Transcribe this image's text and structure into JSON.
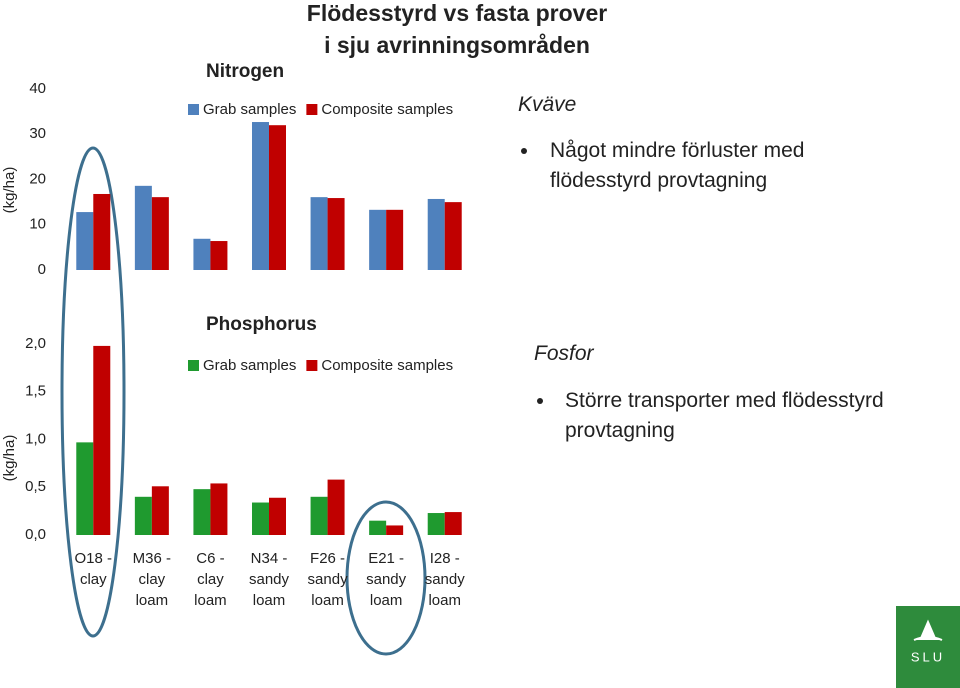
{
  "slide": {
    "title": [
      "Flödesstyrd vs fasta prover",
      "i sju avrinningsområden"
    ],
    "notes": [
      {
        "heading": "Kväve",
        "bullet": "Något mindre förluster med flödesstyrd provtagning"
      },
      {
        "heading": "Fosfor",
        "bullet": "Större transporter med flödesstyrd provtagning"
      }
    ],
    "logo": "SLU"
  },
  "chart_data": [
    {
      "type": "bar",
      "title": "Nitrogen",
      "y_label": "(kg/ha)",
      "categories": [
        null,
        null,
        null,
        null,
        null,
        null,
        null
      ],
      "series": [
        {
          "name": "Grab samples",
          "color": "#4f81bd",
          "values": [
            12.8,
            18.6,
            6.9,
            32.7,
            16.1,
            13.3,
            15.7
          ]
        },
        {
          "name": "Composite samples",
          "color": "#c00000",
          "values": [
            16.8,
            16.1,
            6.4,
            32.0,
            15.9,
            13.3,
            15.0
          ]
        }
      ],
      "ylim": [
        0,
        40
      ],
      "yticks": [
        0,
        10,
        20,
        30,
        40
      ],
      "grid": false
    },
    {
      "type": "bar",
      "title": "Phosphorus",
      "y_label": "(kg/ha)",
      "categories": [
        "O18 - clay",
        "M36 - clay loam",
        "C6 - clay loam",
        "N34 - sandy loam",
        "F26 - sandy loam",
        "E21 - sandy loam",
        "I28 - sandy loam"
      ],
      "series": [
        {
          "name": "Grab samples",
          "color": "#1f9a2f",
          "values": [
            0.97,
            0.4,
            0.48,
            0.34,
            0.4,
            0.15,
            0.23
          ]
        },
        {
          "name": "Composite samples",
          "color": "#c00000",
          "values": [
            1.98,
            0.51,
            0.54,
            0.39,
            0.58,
            0.1,
            0.24
          ]
        }
      ],
      "ylim": [
        0,
        2
      ],
      "yticks": [
        {
          "value": 0,
          "label": "0,0"
        },
        {
          "value": 0.5,
          "label": "0,5"
        },
        {
          "value": 1,
          "label": "1,0"
        },
        {
          "value": 1.5,
          "label": "1,5"
        },
        {
          "value": 2,
          "label": "2,0"
        }
      ],
      "grid": false
    }
  ]
}
